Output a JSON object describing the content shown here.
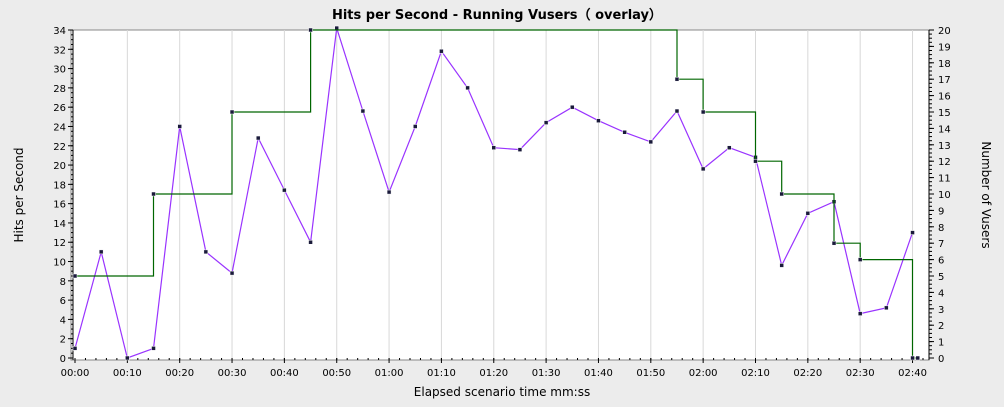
{
  "chart_data": {
    "type": "line",
    "title": "Hits per Second - Running Vusers（ overlay）",
    "xlabel": "Elapsed scenario time mm:ss",
    "ylabel": "Hits per Second",
    "y2label": "Number of Vusers",
    "x_ticks": [
      "00:00",
      "00:10",
      "00:20",
      "00:30",
      "00:40",
      "00:50",
      "01:00",
      "01:10",
      "01:20",
      "01:30",
      "01:40",
      "01:50",
      "02:00",
      "02:10",
      "02:20",
      "02:30",
      "02:40"
    ],
    "y_ticks": [
      "0",
      "2",
      "4",
      "6",
      "8",
      "10",
      "12",
      "14",
      "16",
      "18",
      "20",
      "22",
      "24",
      "26",
      "28",
      "30",
      "32",
      "34"
    ],
    "y2_ticks": [
      "0",
      "1",
      "2",
      "3",
      "4",
      "5",
      "6",
      "7",
      "8",
      "9",
      "10",
      "11",
      "12",
      "13",
      "14",
      "15",
      "16",
      "17",
      "18",
      "19",
      "20"
    ],
    "xlim_seconds": [
      0,
      162
    ],
    "ylim": [
      0,
      34
    ],
    "y2lim": [
      0,
      20
    ],
    "grid": "vertical",
    "series": [
      {
        "name": "Hits per Second",
        "axis": "left",
        "color": "#9933ff",
        "line_style": "line",
        "x_seconds": [
          0,
          5,
          10,
          15,
          20,
          25,
          30,
          35,
          40,
          45,
          50,
          55,
          60,
          65,
          70,
          75,
          80,
          85,
          90,
          95,
          100,
          105,
          110,
          115,
          120,
          125,
          130,
          135,
          140,
          145,
          150,
          155,
          160
        ],
        "values": [
          1,
          11,
          0,
          1,
          24,
          11,
          8.8,
          22.8,
          17.4,
          12,
          34.2,
          25.6,
          17.2,
          24,
          31.8,
          28,
          21.8,
          21.6,
          24.4,
          26,
          24.6,
          23.4,
          22.4,
          25.6,
          19.6,
          21.8,
          20.8,
          9.6,
          15,
          16.2,
          4.6,
          5.2,
          13
        ]
      },
      {
        "name": "Running Vusers",
        "axis": "right",
        "color": "#006600",
        "line_style": "step",
        "x_seconds": [
          0,
          15,
          30,
          45,
          115,
          120,
          130,
          135,
          145,
          150,
          160,
          161
        ],
        "values": [
          5,
          10,
          15,
          20,
          17,
          15,
          12,
          10,
          7,
          6,
          0,
          0
        ]
      }
    ]
  }
}
